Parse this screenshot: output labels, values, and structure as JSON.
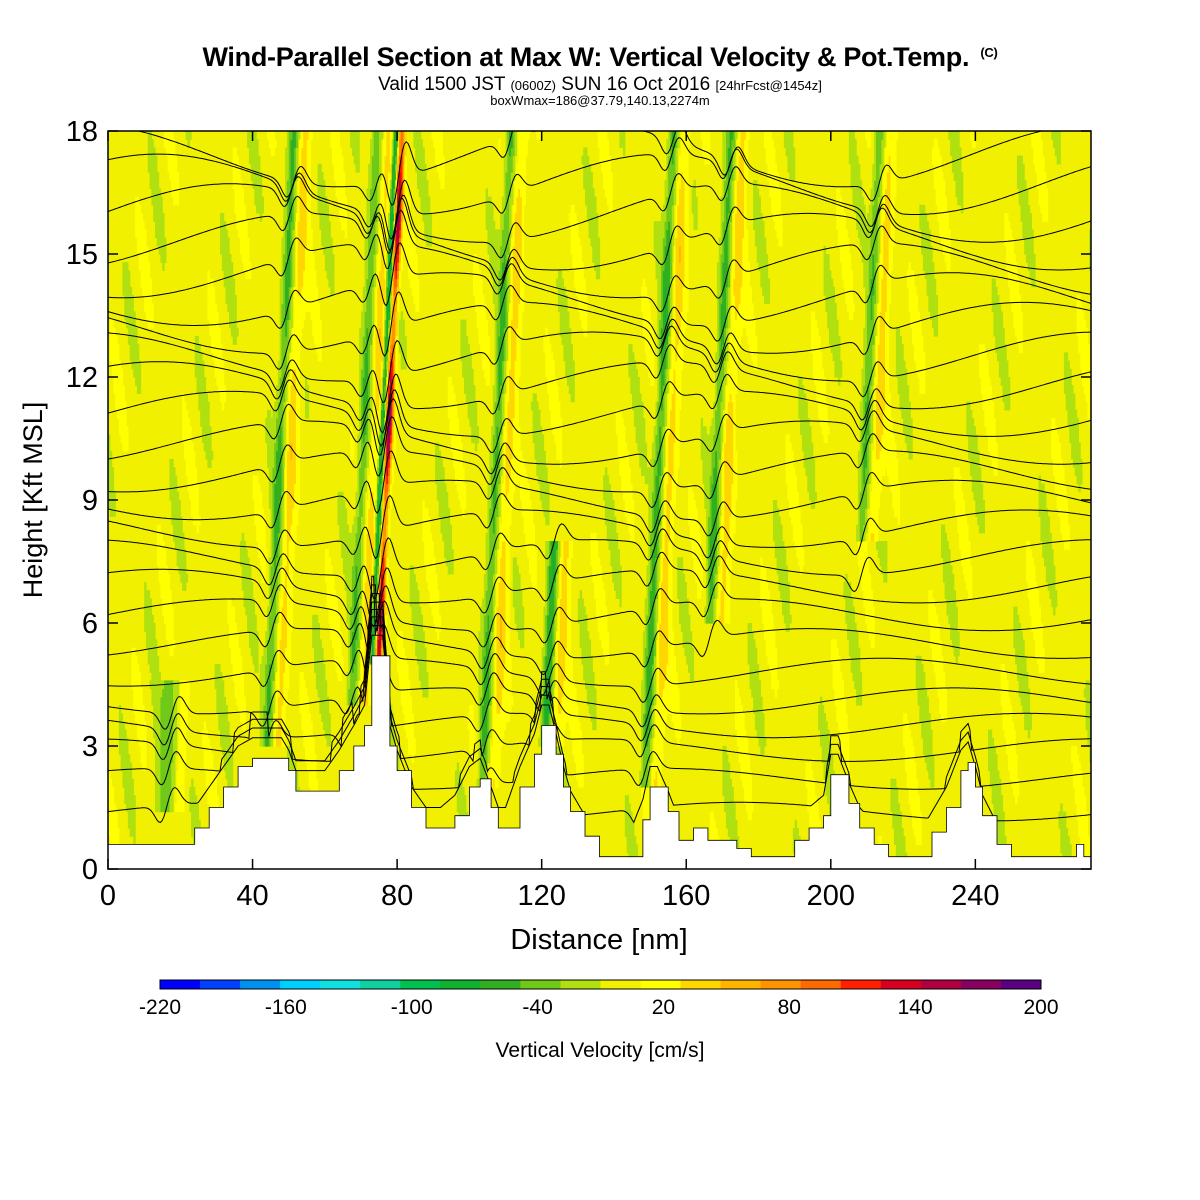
{
  "header": {
    "title": "Wind-Parallel Section at Max W: Vertical Velocity & Pot.Temp.",
    "copyright": "(C)",
    "subtitle_part1": "Valid 1500 JST",
    "subtitle_part2": "(0600Z)",
    "subtitle_part3": "SUN 16 Oct 2016",
    "subtitle_part4": "[24hrFcst@1454z]",
    "subtitle2": "boxWmax=186@37.79,140.13,2274m"
  },
  "chart_data": {
    "type": "heatmap",
    "title": "Wind-Parallel Section at Max W: Vertical Velocity & Pot.Temp.",
    "xlabel": "Distance [nm]",
    "ylabel": "Height [Kft MSL]",
    "xlim": [
      0,
      272
    ],
    "ylim": [
      0,
      18
    ],
    "x_ticks": [
      0,
      40,
      80,
      120,
      160,
      200,
      240
    ],
    "y_ticks": [
      0,
      3,
      6,
      9,
      12,
      15,
      18
    ],
    "colorbar": {
      "label": "Vertical Velocity [cm/s]",
      "tick_labels": [
        "-220",
        "-160",
        "-100",
        "-40",
        "20",
        "80",
        "140",
        "200"
      ],
      "tick_values": [
        -220,
        -160,
        -100,
        -40,
        20,
        80,
        140,
        200
      ],
      "bins": [
        -220,
        -200,
        -180,
        -160,
        -140,
        -120,
        -100,
        -80,
        -60,
        -40,
        -20,
        0,
        20,
        40,
        60,
        80,
        100,
        120,
        140,
        160,
        180,
        200
      ],
      "colors": [
        "#0000ff",
        "#0040ff",
        "#0090f0",
        "#00d0ff",
        "#10e0e0",
        "#10d0a0",
        "#00c050",
        "#10b030",
        "#30b020",
        "#70c818",
        "#b0e010",
        "#f0f000",
        "#ffff00",
        "#ffd700",
        "#ffb400",
        "#ff9400",
        "#ff6a00",
        "#ff2000",
        "#d80020",
        "#b00040",
        "#880060",
        "#580080"
      ]
    },
    "background_value_cm_s": 10,
    "features": [
      {
        "label": "updraft-downdraft couplet",
        "x_nm": 76,
        "z_bottom_kft": 5,
        "z_top_kft": 18,
        "w_max_cm_s": 186,
        "w_min_cm_s": -110
      },
      {
        "label": "downdraft band",
        "x_nm": 47,
        "z_bottom_kft": 3,
        "z_top_kft": 18,
        "w_min_cm_s": -45
      },
      {
        "label": "downdraft band",
        "x_nm": 70,
        "z_bottom_kft": 4,
        "z_top_kft": 18,
        "w_min_cm_s": -40
      },
      {
        "label": "downdraft band",
        "x_nm": 107,
        "z_bottom_kft": 2,
        "z_top_kft": 18,
        "w_min_cm_s": -45
      },
      {
        "label": "downdraft band",
        "x_nm": 124,
        "z_bottom_kft": 3,
        "z_top_kft": 8,
        "w_min_cm_s": -60
      },
      {
        "label": "downdraft band",
        "x_nm": 152,
        "z_bottom_kft": 2,
        "z_top_kft": 18,
        "w_min_cm_s": -50
      },
      {
        "label": "downdraft band",
        "x_nm": 168,
        "z_bottom_kft": 6,
        "z_top_kft": 18,
        "w_min_cm_s": -45
      },
      {
        "label": "downdraft band",
        "x_nm": 209,
        "z_bottom_kft": 8,
        "z_top_kft": 18,
        "w_min_cm_s": -40
      },
      {
        "label": "weak sink",
        "x_nm": 20,
        "z_bottom_kft": 1.5,
        "z_top_kft": 4.6,
        "w_min_cm_s": -30
      }
    ],
    "terrain": {
      "x_nm": [
        0,
        20,
        24,
        28,
        32,
        36,
        40,
        44,
        48,
        50,
        52,
        56,
        60,
        64,
        68,
        71,
        73,
        74,
        76,
        78,
        80,
        84,
        88,
        92,
        96,
        100,
        103,
        106,
        108,
        110,
        114,
        118,
        120,
        122,
        124,
        126,
        128,
        132,
        136,
        140,
        144,
        148,
        150,
        152,
        155,
        158,
        162,
        166,
        170,
        174,
        178,
        182,
        186,
        190,
        194,
        198,
        200,
        202,
        205,
        208,
        212,
        216,
        220,
        224,
        228,
        232,
        236,
        238,
        240,
        242,
        246,
        250,
        254,
        258,
        262,
        266,
        268,
        270,
        272
      ],
      "z_kft": [
        0.6,
        0.6,
        1.0,
        1.5,
        2.0,
        2.5,
        2.7,
        2.7,
        2.7,
        2.4,
        1.9,
        1.9,
        1.9,
        2.4,
        3.0,
        3.5,
        5.2,
        5.2,
        5.2,
        3.0,
        2.4,
        1.5,
        1.0,
        1.0,
        1.3,
        2.0,
        2.2,
        1.5,
        1.0,
        1.0,
        2.0,
        2.8,
        3.5,
        3.5,
        2.8,
        2.0,
        1.4,
        0.8,
        0.3,
        0.3,
        0.3,
        1.2,
        2.0,
        2.0,
        1.4,
        0.7,
        1.0,
        0.7,
        0.7,
        0.5,
        0.3,
        0.3,
        0.3,
        0.7,
        1.0,
        1.3,
        2.3,
        2.3,
        1.6,
        1.0,
        0.6,
        0.3,
        0.3,
        0.3,
        0.9,
        1.5,
        2.4,
        2.6,
        2.0,
        1.3,
        0.6,
        0.3,
        0.3,
        0.3,
        0.3,
        0.3,
        0.6,
        0.3,
        0.3
      ]
    },
    "theta_contours": {
      "description": "potential temperature isentropes (black lines)",
      "base_heights_kft": [
        1.4,
        2.2,
        2.9,
        3.5,
        4.1,
        4.8,
        5.5,
        6.2,
        6.9,
        7.6,
        8.3,
        9.0,
        9.7,
        10.4,
        11.1,
        11.8,
        12.5,
        13.2,
        13.9,
        14.6,
        15.3,
        16.0,
        16.7,
        17.4
      ]
    },
    "grid": false,
    "legend": "colorbar-bottom"
  }
}
